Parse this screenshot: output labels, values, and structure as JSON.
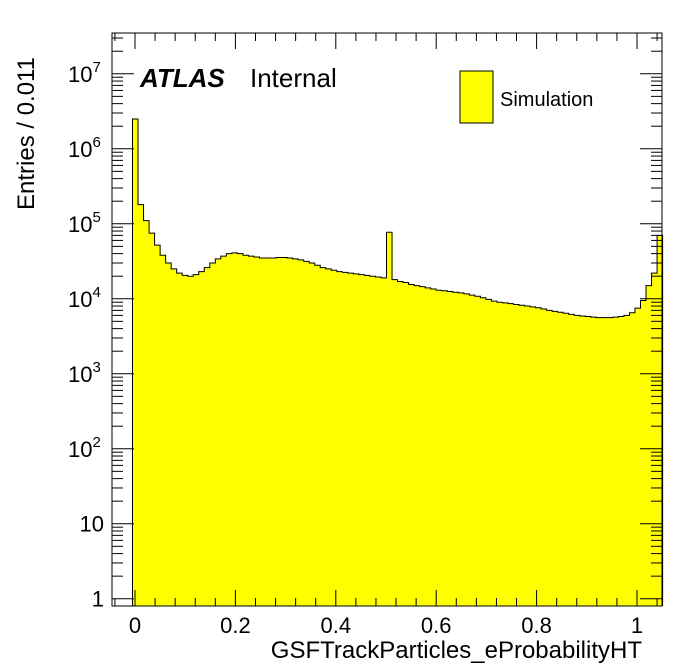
{
  "labels": {
    "experiment": "ATLAS",
    "status": "Internal"
  },
  "chart_data": {
    "type": "histogram",
    "xlabel": "GSFTrackParticles_eProbabilityHT",
    "ylabel": "Entries / 0.011",
    "x_range": [
      -0.05,
      1.05
    ],
    "y_range_log": [
      0.8,
      35000000
    ],
    "y_scale": "log",
    "x_ticks": [
      0,
      0.2,
      0.4,
      0.6,
      0.8,
      1
    ],
    "x_tick_labels": [
      "0",
      "0.2",
      "0.4",
      "0.6",
      "0.8",
      "1"
    ],
    "y_ticks": [
      {
        "value": 1,
        "base": "1",
        "exp": ""
      },
      {
        "value": 10,
        "base": "10",
        "exp": ""
      },
      {
        "value": 100,
        "base": "10",
        "exp": "2"
      },
      {
        "value": 1000,
        "base": "10",
        "exp": "3"
      },
      {
        "value": 10000,
        "base": "10",
        "exp": "4"
      },
      {
        "value": 100000,
        "base": "10",
        "exp": "5"
      },
      {
        "value": 1000000,
        "base": "10",
        "exp": "6"
      },
      {
        "value": 10000000,
        "base": "10",
        "exp": "7"
      }
    ],
    "bin_width": 0.011,
    "bin_start": -0.005,
    "series": [
      {
        "name": "Simulation",
        "color": "#ffff00",
        "edge_color": "#000000",
        "values": [
          2500000,
          180000,
          110000,
          75000,
          52000,
          38000,
          30000,
          25000,
          22000,
          20500,
          20000,
          21000,
          23000,
          26000,
          30000,
          34000,
          37000,
          40000,
          41000,
          40000,
          38000,
          37000,
          36000,
          35000,
          35000,
          35000,
          35500,
          35500,
          35000,
          34000,
          33000,
          31500,
          30000,
          28000,
          26000,
          25000,
          24000,
          23000,
          22500,
          22000,
          21500,
          21000,
          20500,
          20000,
          19500,
          19000,
          77000,
          18000,
          17000,
          16500,
          15500,
          15000,
          14500,
          14000,
          13500,
          13000,
          12800,
          12500,
          12200,
          12000,
          11600,
          11200,
          10800,
          10300,
          9800,
          9300,
          9000,
          8800,
          8600,
          8400,
          8200,
          8000,
          7800,
          7600,
          7300,
          7000,
          6800,
          6600,
          6400,
          6200,
          6000,
          5900,
          5800,
          5700,
          5600,
          5600,
          5600,
          5700,
          5800,
          6000,
          6500,
          7500,
          9500,
          15000,
          22000,
          70000
        ]
      }
    ],
    "legend": [
      {
        "label": "Simulation",
        "color": "#ffff00"
      }
    ],
    "legend_position": "top-right"
  }
}
